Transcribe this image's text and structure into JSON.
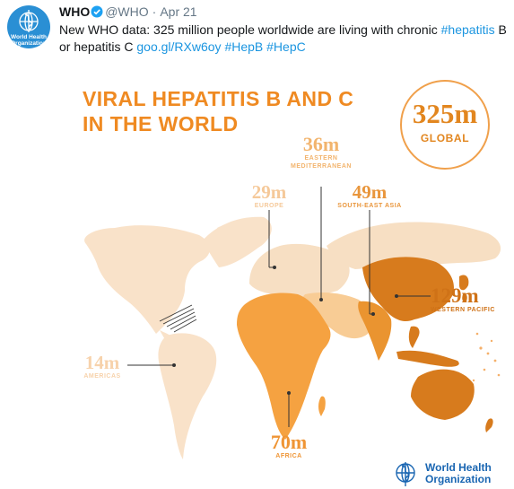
{
  "tweet": {
    "avatar_text": [
      "World Health",
      "Organization"
    ],
    "author_name": "WHO",
    "handle": "@WHO",
    "separator": "·",
    "date": "Apr 21",
    "text_before": "New WHO data: 325 million people worldwide are living with chronic ",
    "hashtag_hepatitis": "#hepatitis",
    "text_middle": " B or hepatitis C ",
    "link": "goo.gl/RXw6oy",
    "hashtag_hepb": "#HepB",
    "hashtag_hepc": "#HepC"
  },
  "infographic": {
    "title_line1": "VIRAL HEPATITIS B AND C",
    "title_line2": "IN THE WORLD",
    "global": {
      "value": "325m",
      "label": "GLOBAL"
    },
    "regions": {
      "eastern_mediterranean": {
        "value": "36m",
        "label_line1": "EASTERN",
        "label_line2": "MEDITERRANEAN"
      },
      "europe": {
        "value": "29m",
        "label": "EUROPE"
      },
      "south_east_asia": {
        "value": "49m",
        "label": "SOUTH-EAST ASIA"
      },
      "western_pacific": {
        "value": "129m",
        "label": "WESTERN PACIFIC"
      },
      "americas": {
        "value": "14m",
        "label": "AMERICAS"
      },
      "africa": {
        "value": "70m",
        "label": "AFRICA"
      }
    },
    "logo": {
      "line1": "World Health",
      "line2": "Organization"
    }
  },
  "colors": {
    "accent": "#ef8a22",
    "link": "#1b95e0",
    "verified": "#1da1f2",
    "who_blue": "#1a66b2",
    "americas": "#f9e2c9",
    "europe": "#f7dfc3",
    "africa": "#f5a241",
    "eastern_mediterranean": "#f8cc95",
    "south_east_asia": "#ea9430",
    "western_pacific": "#d77b1d"
  }
}
